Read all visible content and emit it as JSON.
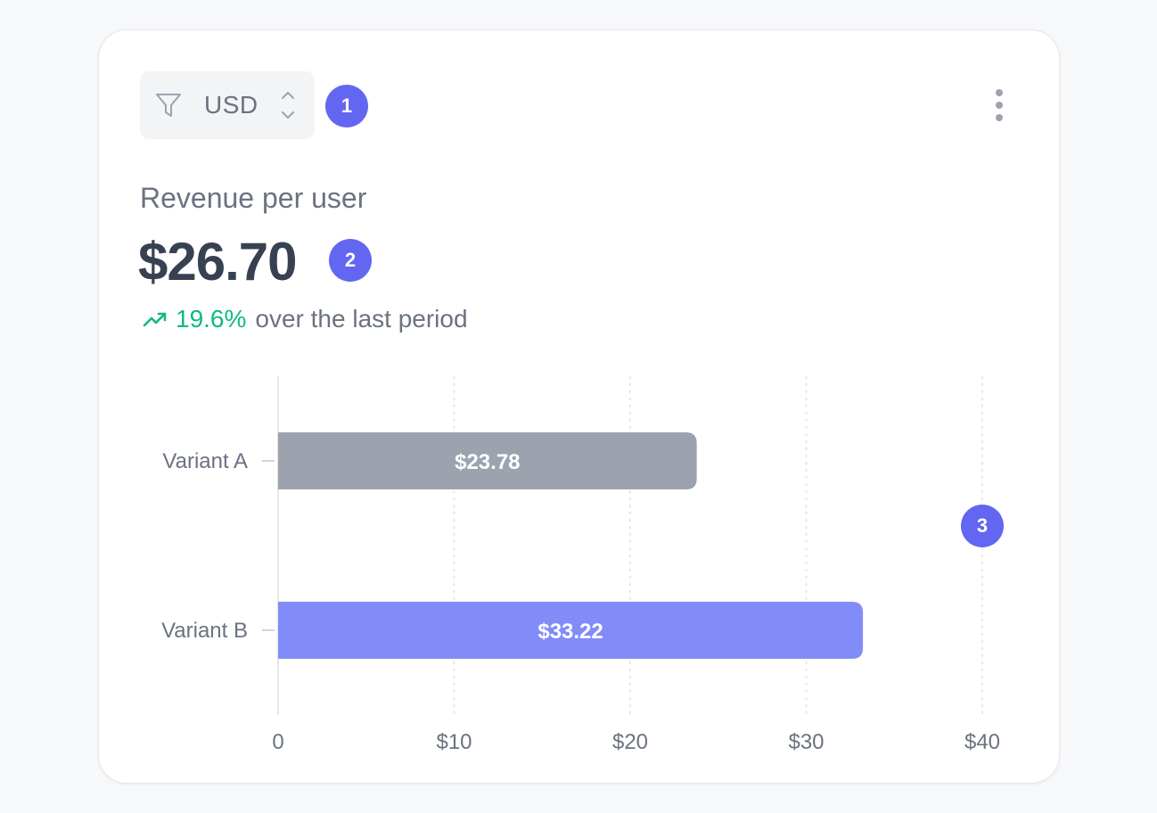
{
  "filter": {
    "currency": "USD"
  },
  "badges": [
    "1",
    "2",
    "3"
  ],
  "metric": {
    "label": "Revenue per user",
    "value": "$26.70",
    "change_pct": "19.6%",
    "change_suffix": "over the last period"
  },
  "colors": {
    "accent": "#6366f1",
    "bar_a": "#9ca3af",
    "bar_b": "#818cf8",
    "positive": "#10b981"
  },
  "chart_data": {
    "type": "bar",
    "orientation": "horizontal",
    "categories": [
      "Variant A",
      "Variant B"
    ],
    "values": [
      23.78,
      33.22
    ],
    "value_labels": [
      "$23.78",
      "$33.22"
    ],
    "xlim": [
      0,
      40
    ],
    "x_ticks": [
      0,
      10,
      20,
      30,
      40
    ],
    "x_tick_labels": [
      "0",
      "$10",
      "$20",
      "$30",
      "$40"
    ],
    "grid": "vertical dashed"
  }
}
